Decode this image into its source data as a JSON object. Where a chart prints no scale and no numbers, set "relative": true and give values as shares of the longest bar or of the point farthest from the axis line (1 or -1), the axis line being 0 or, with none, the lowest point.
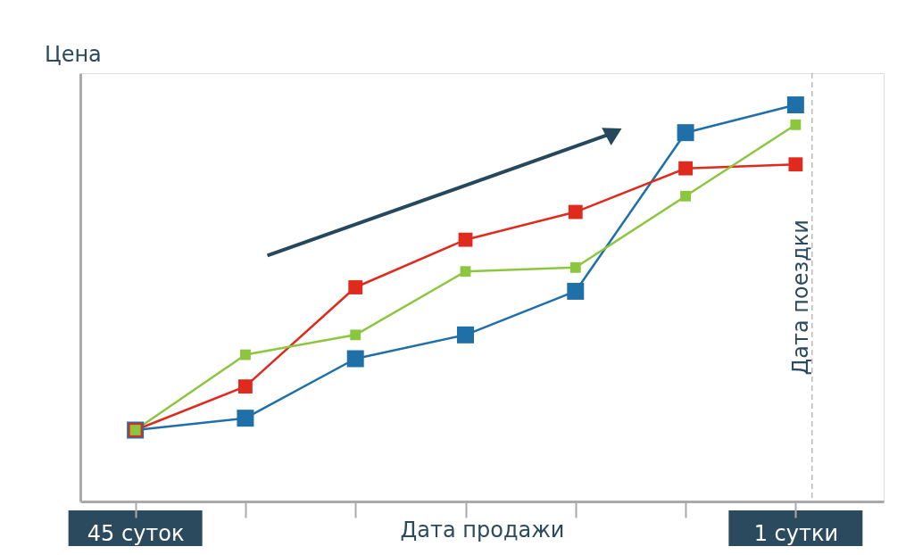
{
  "chart_data": {
    "type": "line",
    "relative": true,
    "ylabel": "Цена",
    "xlabel": "Дата продажи",
    "categories": [
      "45 суток",
      null,
      null,
      null,
      null,
      null,
      "1 сутки"
    ],
    "series": [
      {
        "color": "#1f6fa8",
        "values": [
          0.18,
          0.21,
          0.36,
          0.42,
          0.53,
          0.93,
          1
        ]
      },
      {
        "color": "#e02a1e",
        "values": [
          0.18,
          0.29,
          0.54,
          0.66,
          0.73,
          0.84,
          0.85
        ]
      },
      {
        "color": "#8cc63f",
        "values": [
          0.18,
          0.37,
          0.42,
          0.58,
          0.59,
          0.77,
          0.95
        ]
      }
    ],
    "annotations": [
      "Дата поездки"
    ],
    "marker": "square",
    "grid": false,
    "legend": false
  }
}
